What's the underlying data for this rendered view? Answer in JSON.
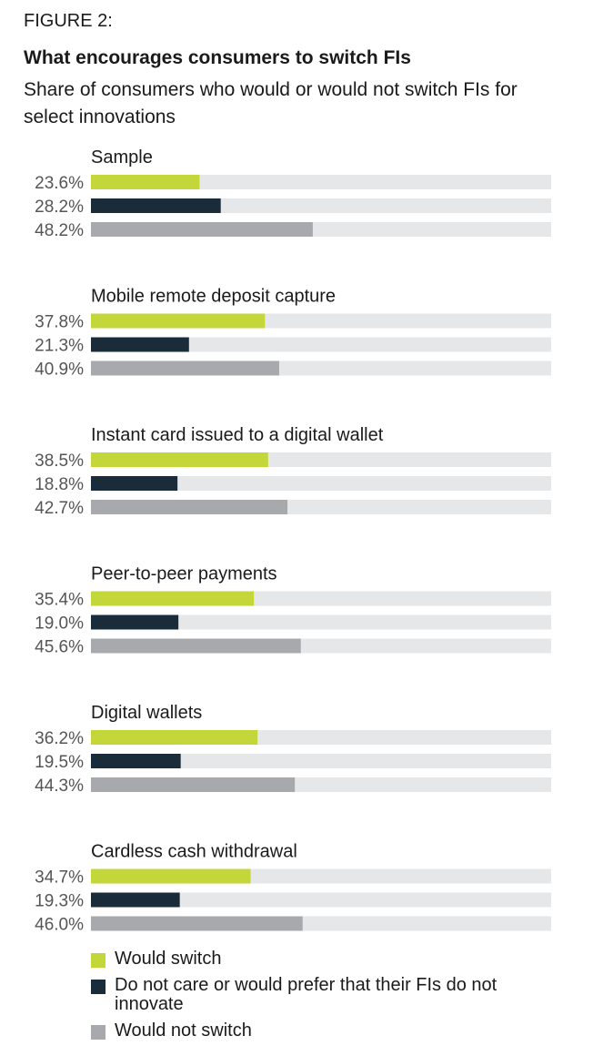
{
  "figure_label": "FIGURE 2:",
  "chart_data": {
    "type": "bar",
    "orientation": "horizontal",
    "title": "What encourages consumers to switch FIs",
    "subtitle": "Share of consumers who would or would not switch FIs for select innovations",
    "xlim": [
      0,
      100
    ],
    "value_suffix": "%",
    "grid": false,
    "legend_position": "bottom",
    "colors": {
      "track": "#e6e7e8",
      "would_switch": "#c3d63a",
      "do_not_care": "#1a2b3a",
      "would_not_switch": "#a7a9ac"
    },
    "series": [
      {
        "name": "Would switch",
        "color_key": "would_switch"
      },
      {
        "name": "Do not care or would prefer that their FIs do not innovate",
        "color_key": "do_not_care"
      },
      {
        "name": "Would not switch",
        "color_key": "would_not_switch"
      }
    ],
    "groups": [
      {
        "label": "Sample",
        "values": [
          23.6,
          28.2,
          48.2
        ],
        "labels": [
          "23.6%",
          "28.2%",
          "48.2%"
        ]
      },
      {
        "label": "Mobile remote deposit capture",
        "values": [
          37.8,
          21.3,
          40.9
        ],
        "labels": [
          "37.8%",
          "21.3%",
          "40.9%"
        ]
      },
      {
        "label": "Instant card issued to a digital wallet",
        "values": [
          38.5,
          18.8,
          42.7
        ],
        "labels": [
          "38.5%",
          "18.8%",
          "42.7%"
        ]
      },
      {
        "label": "Peer-to-peer payments",
        "values": [
          35.4,
          19.0,
          45.6
        ],
        "labels": [
          "35.4%",
          "19.0%",
          "45.6%"
        ]
      },
      {
        "label": "Digital wallets",
        "values": [
          36.2,
          19.5,
          44.3
        ],
        "labels": [
          "36.2%",
          "19.5%",
          "44.3%"
        ]
      },
      {
        "label": "Cardless cash withdrawal",
        "values": [
          34.7,
          19.3,
          46.0
        ],
        "labels": [
          "34.7%",
          "19.3%",
          "46.0%"
        ]
      }
    ]
  }
}
